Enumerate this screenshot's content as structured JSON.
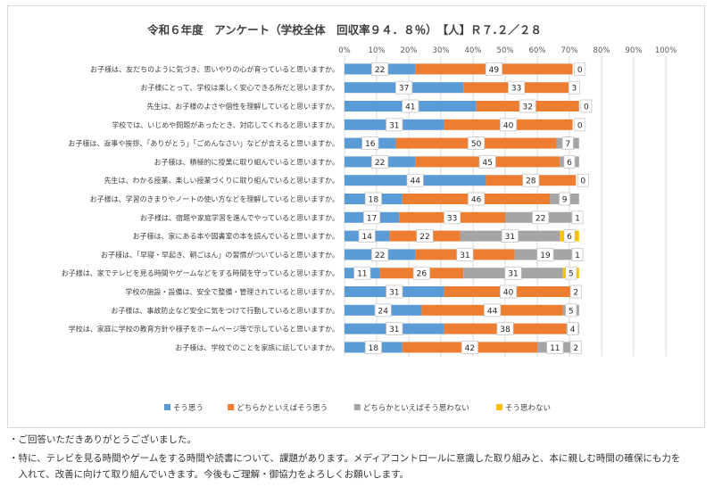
{
  "chart_data": {
    "type": "bar",
    "stacked": true,
    "orientation": "horizontal",
    "title": "令和６年度　アンケート（学校全体　回収率９４．８％）　【人】Ｒ７.２／２８",
    "xlim": [
      0,
      100
    ],
    "x_tick_labels": [
      "0%",
      "10%",
      "20%",
      "30%",
      "40%",
      "50%",
      "60%",
      "70%",
      "80%",
      "90%",
      "100%"
    ],
    "grid": true,
    "legend_position": "bottom",
    "categories": [
      "お子様は、友だちのように気づき、思いやりの心が育っていると思いますか。",
      "お子様にとって、学校は楽しく安心できる所だと思いますか。",
      "先生は、お子様のよさや個性を理解していると思いますか。",
      "学校では、いじめや問題があったとき、対応してくれると思いますか。",
      "お子様は、返事や挨拶、「ありがとう」「ごめんなさい」などが言えると思いますか。",
      "お子様は、積極的に授業に取り組んでいると思いますか。",
      "先生は、わかる授業、楽しい授業づくりに取り組んでいると思いますか。",
      "お子様は、学習のきまりやノートの使い方などを理解していると思いますか。",
      "お子様は、宿題や家庭学習を進んでやっていると思いますか。",
      "お子様は、家にある本や図書室の本を読んでいると思いますか。",
      "お子様は、「早寝・早起き、朝ごはん」の習慣がついていると思いますか。",
      "お子様は、家でテレビを見る時間やゲームなどをする時間を守っていると思いますか。",
      "学校の施設・設備は、安全で整備・管理されていると思いますか。",
      "お子様は、事故防止など安全に気をつけて行動していると思いますか。",
      "学校は、家庭に学校の教育方針や様子をホームページ等で示していると思いますか。",
      "お子様は、学校でのことを家族に話していますか。"
    ],
    "series": [
      {
        "name": "そう思う",
        "color": "#5b9bd5",
        "values": [
          22,
          37,
          41,
          31,
          16,
          22,
          44,
          18,
          17,
          14,
          22,
          11,
          31,
          24,
          31,
          18
        ]
      },
      {
        "name": "どちらかといえばそう思う",
        "color": "#ed7d31",
        "values": [
          49,
          33,
          32,
          40,
          50,
          45,
          28,
          46,
          33,
          22,
          31,
          26,
          40,
          44,
          38,
          42
        ]
      },
      {
        "name": "どちらかといえばそう思わない",
        "color": "#a5a5a5",
        "values": [
          0,
          3,
          0,
          0,
          7,
          6,
          0,
          9,
          22,
          31,
          19,
          31,
          2,
          5,
          4,
          11
        ]
      },
      {
        "name": "そう思わない",
        "color": "#ffc000",
        "values": [
          0,
          0,
          0,
          0,
          0,
          0,
          0,
          0,
          1,
          6,
          1,
          5,
          0,
          0,
          0,
          2
        ]
      }
    ]
  },
  "notes": [
    "・ご回答いただきありがとうございました。",
    "・特に、テレビを見る時間やゲームをする時間や読書について、課題があります。メディアコントロールに意識した取り組みと、本に親しむ時間の確保にも力を",
    "　入れて、改善に向けて取り組んでいきます。今後もご理解・御協力をよろしくお願いします。"
  ]
}
